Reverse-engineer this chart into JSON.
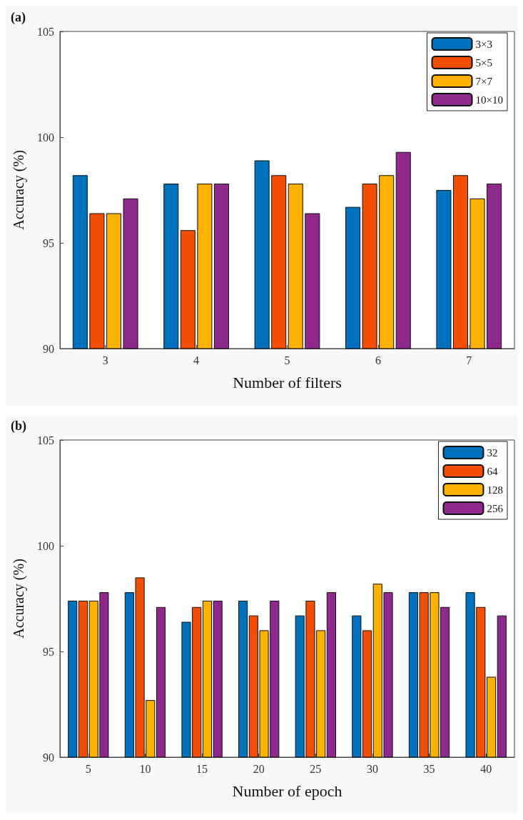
{
  "chart_data": [
    {
      "type": "bar",
      "title": "(a)",
      "xlabel": "Number of filters",
      "ylabel": "Accuracy (%)",
      "categories": [
        "3",
        "4",
        "5",
        "6",
        "7"
      ],
      "series": [
        {
          "name": "3×3",
          "color": "#0072bd",
          "values": [
            98.2,
            97.8,
            98.9,
            96.7,
            97.5
          ]
        },
        {
          "name": "5×5",
          "color": "#f24e05",
          "values": [
            96.4,
            95.6,
            98.2,
            97.8,
            98.2
          ]
        },
        {
          "name": "7×7",
          "color": "#fdb100",
          "values": [
            96.4,
            97.8,
            97.8,
            98.2,
            97.1
          ]
        },
        {
          "name": "10×10",
          "color": "#8f2a8c",
          "values": [
            97.1,
            97.8,
            96.4,
            99.3,
            97.8
          ]
        }
      ],
      "ylim": [
        90,
        105
      ],
      "yticks": [
        90,
        95,
        100,
        105
      ],
      "grid": false,
      "legend": "top right"
    },
    {
      "type": "bar",
      "title": "(b)",
      "xlabel": "Number of epoch",
      "ylabel": "Accuracy (%)",
      "categories": [
        "5",
        "10",
        "15",
        "20",
        "25",
        "30",
        "35",
        "40"
      ],
      "series": [
        {
          "name": "32",
          "color": "#0072bd",
          "values": [
            97.4,
            97.8,
            96.4,
            97.4,
            96.7,
            96.7,
            97.8,
            97.8
          ]
        },
        {
          "name": "64",
          "color": "#f24e05",
          "values": [
            97.4,
            98.5,
            97.1,
            96.7,
            97.4,
            96.0,
            97.8,
            97.1
          ]
        },
        {
          "name": "128",
          "color": "#fdb100",
          "values": [
            97.4,
            92.7,
            97.4,
            96.0,
            96.0,
            98.2,
            97.8,
            93.8
          ]
        },
        {
          "name": "256",
          "color": "#8f2a8c",
          "values": [
            97.8,
            97.1,
            97.4,
            97.4,
            97.8,
            97.8,
            97.1,
            96.7
          ]
        }
      ],
      "ylim": [
        90,
        105
      ],
      "yticks": [
        90,
        95,
        100,
        105
      ],
      "grid": false,
      "legend": "top right"
    }
  ]
}
